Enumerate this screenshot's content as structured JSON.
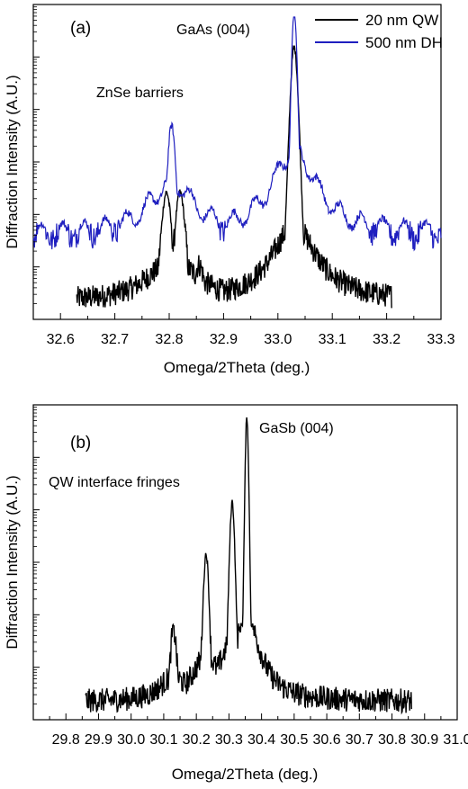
{
  "chart_data": [
    {
      "type": "line",
      "panel_label": "(a)",
      "xlabel": "Omega/2Theta (deg.)",
      "ylabel": "Diffraction Intensity (A.U.)",
      "xlim": [
        32.55,
        33.3
      ],
      "y_scale": "log",
      "y_ticklabels_shown": false,
      "x_ticks": [
        "32.6",
        "32.7",
        "32.8",
        "32.9",
        "33.0",
        "33.1",
        "33.2",
        "33.3"
      ],
      "legend_position": "top-right",
      "annotations": [
        "GaAs (004)",
        "ZnSe barriers"
      ],
      "series": [
        {
          "name": "20 nm QW",
          "color": "#000000",
          "x_range": [
            32.63,
            33.21
          ],
          "peaks": [
            {
              "x": 32.795,
              "rel_height": 0.42
            },
            {
              "x": 32.82,
              "rel_height": 0.42
            },
            {
              "x": 32.855,
              "rel_height": 0.18
            },
            {
              "x": 33.03,
              "rel_height": 0.9
            }
          ]
        },
        {
          "name": "500 nm DH",
          "color": "#1f1fbf",
          "x_range": [
            32.55,
            33.3
          ],
          "peaks": [
            {
              "x": 32.805,
              "rel_height": 0.62
            },
            {
              "x": 33.03,
              "rel_height": 1.0
            }
          ]
        }
      ]
    },
    {
      "type": "line",
      "panel_label": "(b)",
      "xlabel": "Omega/2Theta (deg.)",
      "ylabel": "Diffraction Intensity (A.U.)",
      "xlim": [
        29.7,
        31.0
      ],
      "y_scale": "log",
      "y_ticklabels_shown": false,
      "x_ticks": [
        "29.8",
        "29.9",
        "30.0",
        "30.1",
        "30.2",
        "30.3",
        "30.4",
        "30.5",
        "30.6",
        "30.7",
        "30.8",
        "30.9",
        "31.0"
      ],
      "annotations": [
        "GaSb (004)",
        "QW interface fringes"
      ],
      "series": [
        {
          "color": "#000000",
          "x_range": [
            29.86,
            30.86
          ],
          "peaks": [
            {
              "x": 30.13,
              "rel_height": 0.3
            },
            {
              "x": 30.23,
              "rel_height": 0.55
            },
            {
              "x": 30.31,
              "rel_height": 0.72
            },
            {
              "x": 30.355,
              "rel_height": 1.0
            }
          ]
        }
      ]
    }
  ]
}
